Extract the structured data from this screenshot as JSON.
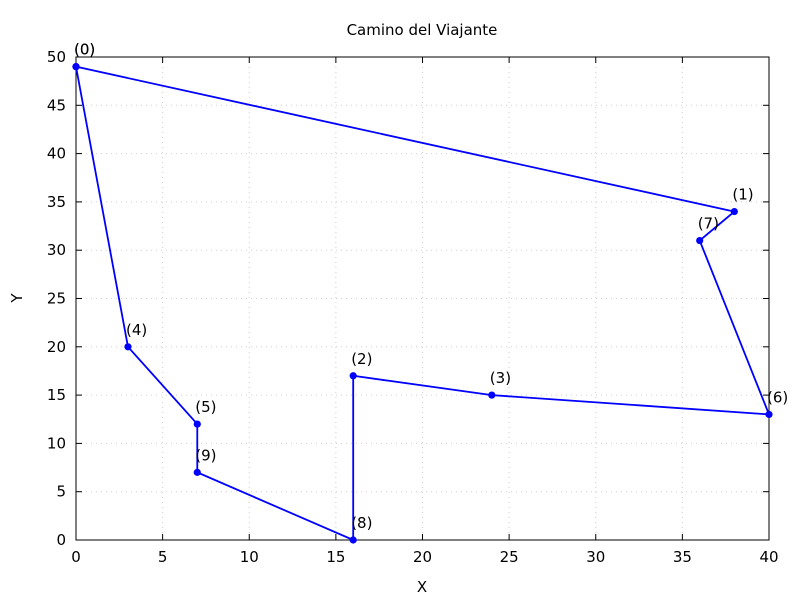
{
  "chart_data": {
    "type": "line",
    "title": "Camino del Viajante",
    "xlabel": "X",
    "ylabel": "Y",
    "xlim": [
      0,
      40
    ],
    "ylim": [
      0,
      50
    ],
    "xticks": [
      0,
      5,
      10,
      15,
      20,
      25,
      30,
      35,
      40
    ],
    "yticks": [
      0,
      5,
      10,
      15,
      20,
      25,
      30,
      35,
      40,
      45,
      50
    ],
    "grid": true,
    "line_color": "#0000ff",
    "path": [
      {
        "label": "(0)",
        "x": 0,
        "y": 49
      },
      {
        "label": "(4)",
        "x": 3,
        "y": 20
      },
      {
        "label": "(5)",
        "x": 7,
        "y": 12
      },
      {
        "label": "(9)",
        "x": 7,
        "y": 7
      },
      {
        "label": "(8)",
        "x": 16,
        "y": 0
      },
      {
        "label": "(2)",
        "x": 16,
        "y": 17
      },
      {
        "label": "(3)",
        "x": 24,
        "y": 15
      },
      {
        "label": "(6)",
        "x": 40,
        "y": 13
      },
      {
        "label": "(7)",
        "x": 36,
        "y": 31
      },
      {
        "label": "(1)",
        "x": 38,
        "y": 34
      },
      {
        "label": "(0)",
        "x": 0,
        "y": 49
      }
    ]
  }
}
